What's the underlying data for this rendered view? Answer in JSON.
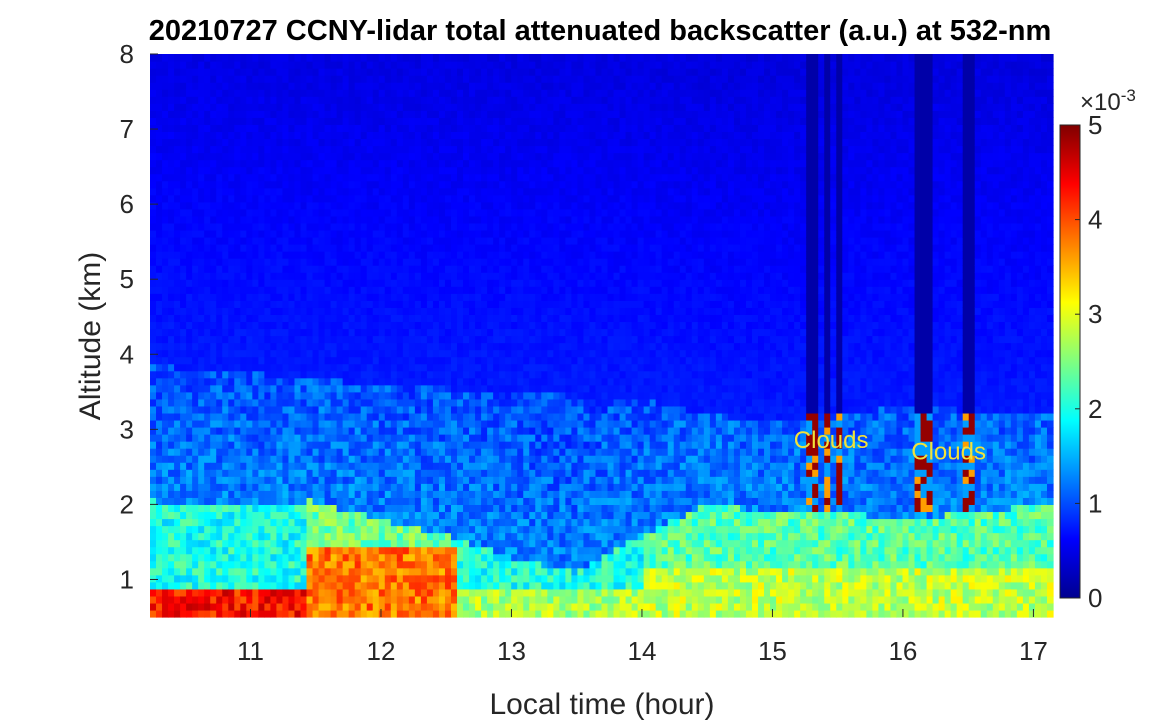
{
  "chart_data": {
    "type": "heatmap",
    "title": "20210727 CCNY-lidar total attenuated backscatter (a.u.) at 532-nm",
    "xlabel": "Local time (hour)",
    "ylabel": "Altitude (km)",
    "xlim": [
      10.23,
      17.15
    ],
    "ylim": [
      0.5,
      8
    ],
    "x_ticks": [
      11,
      12,
      13,
      14,
      15,
      16,
      17
    ],
    "y_ticks": [
      1,
      2,
      3,
      4,
      5,
      6,
      7,
      8
    ],
    "colormap": "jet",
    "colorbar": {
      "range": [
        0,
        5
      ],
      "ticks": [
        0,
        1,
        2,
        3,
        4,
        5
      ],
      "exponent_label": "×10",
      "exponent": "-3"
    },
    "annotations": [
      {
        "text": "Clouds",
        "x": 15.45,
        "y": 2.75,
        "color": "#f2e23a"
      },
      {
        "text": "Clouds",
        "x": 16.35,
        "y": 2.6,
        "color": "#f2e23a"
      }
    ],
    "features": {
      "cloud_columns_hours": [
        15.3,
        15.42,
        15.52,
        16.12,
        16.19,
        16.5
      ],
      "cloud_base_km": 1.9,
      "aerosol_layer_top_km": [
        [
          10.23,
          2.05
        ],
        [
          11.0,
          2.0
        ],
        [
          11.45,
          2.05
        ],
        [
          12.0,
          1.8
        ],
        [
          12.5,
          1.6
        ],
        [
          13.0,
          1.3
        ],
        [
          13.5,
          1.1
        ],
        [
          14.0,
          1.6
        ],
        [
          14.5,
          2.0
        ],
        [
          15.0,
          1.9
        ],
        [
          15.5,
          1.9
        ],
        [
          16.0,
          1.8
        ],
        [
          16.5,
          1.9
        ],
        [
          17.15,
          2.0
        ]
      ],
      "residual_layer_top_km": [
        [
          10.23,
          3.85
        ],
        [
          11.0,
          3.75
        ],
        [
          12.0,
          3.6
        ],
        [
          13.0,
          3.5
        ],
        [
          14.0,
          3.4
        ],
        [
          14.5,
          3.2
        ],
        [
          15.0,
          3.1
        ],
        [
          16.0,
          3.3
        ],
        [
          17.15,
          3.2
        ]
      ]
    }
  }
}
